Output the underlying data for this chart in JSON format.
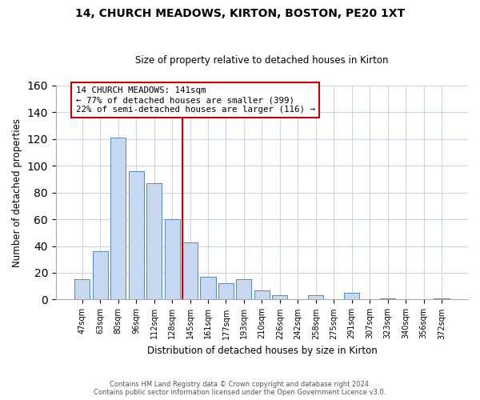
{
  "title": "14, CHURCH MEADOWS, KIRTON, BOSTON, PE20 1XT",
  "subtitle": "Size of property relative to detached houses in Kirton",
  "xlabel": "Distribution of detached houses by size in Kirton",
  "ylabel": "Number of detached properties",
  "bar_labels": [
    "47sqm",
    "63sqm",
    "80sqm",
    "96sqm",
    "112sqm",
    "128sqm",
    "145sqm",
    "161sqm",
    "177sqm",
    "193sqm",
    "210sqm",
    "226sqm",
    "242sqm",
    "258sqm",
    "275sqm",
    "291sqm",
    "307sqm",
    "323sqm",
    "340sqm",
    "356sqm",
    "372sqm"
  ],
  "bar_values": [
    15,
    36,
    121,
    96,
    87,
    60,
    43,
    17,
    12,
    15,
    7,
    3,
    0,
    3,
    0,
    5,
    0,
    1,
    0,
    0,
    1
  ],
  "bar_color": "#c6d9f0",
  "bar_edge_color": "#5588bb",
  "vline_color": "#cc0000",
  "ylim": [
    0,
    160
  ],
  "yticks": [
    0,
    20,
    40,
    60,
    80,
    100,
    120,
    140,
    160
  ],
  "annotation_title": "14 CHURCH MEADOWS: 141sqm",
  "annotation_line1": "← 77% of detached houses are smaller (399)",
  "annotation_line2": "22% of semi-detached houses are larger (116) →",
  "footer_line1": "Contains HM Land Registry data © Crown copyright and database right 2024.",
  "footer_line2": "Contains public sector information licensed under the Open Government Licence v3.0.",
  "background_color": "#ffffff",
  "grid_color": "#ccd5e0"
}
